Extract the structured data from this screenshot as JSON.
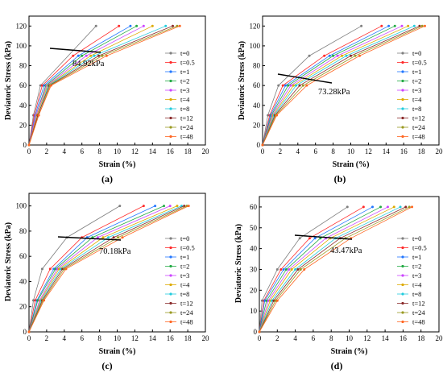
{
  "figure": {
    "shared_xlabel": "Strain (%)",
    "shared_ylabel": "Deviatoric Stress (kPa)"
  },
  "series_colors": [
    "#7f7f7f",
    "#ff2a2a",
    "#2277ff",
    "#22aa44",
    "#cc44ff",
    "#ddaa00",
    "#22ccdd",
    "#8a2a2a",
    "#9a9a22",
    "#ff6622"
  ],
  "chart_data": [
    {
      "panel": "(a)",
      "type": "line",
      "xlabel": "Strain (%)",
      "ylabel": "Deviatoric Stress (kPa)",
      "xlim": [
        0,
        20
      ],
      "ylim": [
        0,
        130
      ],
      "xticks": [
        0,
        2,
        4,
        6,
        8,
        10,
        12,
        14,
        16,
        18,
        20
      ],
      "yticks": [
        0,
        20,
        40,
        60,
        80,
        100,
        120
      ],
      "annotation": "84.92kPa",
      "legend_position": "right",
      "series": [
        {
          "name": "t=0",
          "x": [
            0,
            0.5,
            1.3,
            7.6
          ],
          "y": [
            0,
            30,
            60,
            120
          ]
        },
        {
          "name": "t=0.5",
          "x": [
            0,
            0.6,
            1.5,
            5.0,
            10.2
          ],
          "y": [
            0,
            30,
            60,
            90,
            120
          ]
        },
        {
          "name": "t=1",
          "x": [
            0,
            0.7,
            1.7,
            5.6,
            11.5
          ],
          "y": [
            0,
            30,
            60,
            90,
            120
          ]
        },
        {
          "name": "t=2",
          "x": [
            0,
            0.8,
            1.9,
            6.0,
            12.2
          ],
          "y": [
            0,
            30,
            60,
            90,
            120
          ]
        },
        {
          "name": "t=3",
          "x": [
            0,
            0.8,
            2.0,
            6.5,
            13.0
          ],
          "y": [
            0,
            30,
            60,
            90,
            120
          ]
        },
        {
          "name": "t=4",
          "x": [
            0,
            0.9,
            2.1,
            7.0,
            14.0
          ],
          "y": [
            0,
            30,
            60,
            90,
            120
          ]
        },
        {
          "name": "t=8",
          "x": [
            0,
            1.0,
            2.2,
            7.4,
            15.5
          ],
          "y": [
            0,
            30,
            60,
            90,
            120
          ]
        },
        {
          "name": "t=12",
          "x": [
            0,
            1.0,
            2.3,
            7.9,
            16.3
          ],
          "y": [
            0,
            30,
            60,
            90,
            120
          ]
        },
        {
          "name": "t=24",
          "x": [
            0,
            1.1,
            2.4,
            8.3,
            16.8
          ],
          "y": [
            0,
            30,
            60,
            90,
            120
          ]
        },
        {
          "name": "t=48",
          "x": [
            0,
            1.1,
            2.5,
            8.8,
            17.1
          ],
          "y": [
            0,
            30,
            60,
            90,
            120
          ]
        }
      ]
    },
    {
      "panel": "(b)",
      "type": "line",
      "xlabel": "Strain (%)",
      "ylabel": "Deviatoric Stress (kPa)",
      "xlim": [
        0,
        20
      ],
      "ylim": [
        0,
        130
      ],
      "xticks": [
        0,
        2,
        4,
        6,
        8,
        10,
        12,
        14,
        16,
        18,
        20
      ],
      "yticks": [
        0,
        20,
        40,
        60,
        80,
        100,
        120
      ],
      "annotation": "73.28kPa",
      "legend_position": "right",
      "series": [
        {
          "name": "t=0",
          "x": [
            0,
            0.6,
            1.8,
            5.3,
            11.2
          ],
          "y": [
            0,
            30,
            60,
            90,
            120
          ]
        },
        {
          "name": "t=0.5",
          "x": [
            0,
            0.8,
            2.3,
            7.0,
            13.5
          ],
          "y": [
            0,
            30,
            60,
            90,
            120
          ]
        },
        {
          "name": "t=1",
          "x": [
            0,
            0.9,
            2.6,
            7.6,
            14.3
          ],
          "y": [
            0,
            30,
            60,
            90,
            120
          ]
        },
        {
          "name": "t=2",
          "x": [
            0,
            1.0,
            2.9,
            8.0,
            15.0
          ],
          "y": [
            0,
            30,
            60,
            90,
            120
          ]
        },
        {
          "name": "t=3",
          "x": [
            0,
            1.1,
            3.2,
            8.5,
            15.8
          ],
          "y": [
            0,
            30,
            60,
            90,
            120
          ]
        },
        {
          "name": "t=4",
          "x": [
            0,
            1.2,
            3.5,
            9.0,
            16.5
          ],
          "y": [
            0,
            30,
            60,
            90,
            120
          ]
        },
        {
          "name": "t=8",
          "x": [
            0,
            1.3,
            3.8,
            9.5,
            17.2
          ],
          "y": [
            0,
            30,
            60,
            90,
            120
          ]
        },
        {
          "name": "t=12",
          "x": [
            0,
            1.4,
            4.2,
            10.0,
            17.8
          ],
          "y": [
            0,
            30,
            60,
            90,
            120
          ]
        },
        {
          "name": "t=24",
          "x": [
            0,
            1.5,
            4.6,
            10.5,
            18.1
          ],
          "y": [
            0,
            30,
            60,
            90,
            120
          ]
        },
        {
          "name": "t=48",
          "x": [
            0,
            1.6,
            5.0,
            11.0,
            18.4
          ],
          "y": [
            0,
            30,
            60,
            90,
            120
          ]
        }
      ]
    },
    {
      "panel": "(c)",
      "type": "line",
      "xlabel": "Strain (%)",
      "ylabel": "Deviatoric Stress (kPa)",
      "xlim": [
        0,
        20
      ],
      "ylim": [
        0,
        110
      ],
      "xticks": [
        0,
        2,
        4,
        6,
        8,
        10,
        12,
        14,
        16,
        18,
        20
      ],
      "yticks": [
        0,
        20,
        40,
        60,
        80,
        100
      ],
      "annotation": "70.18kPa",
      "legend_position": "right",
      "series": [
        {
          "name": "t=0",
          "x": [
            0,
            0.5,
            1.5,
            4.3,
            10.3
          ],
          "y": [
            0,
            25,
            50,
            75,
            100
          ]
        },
        {
          "name": "t=0.5",
          "x": [
            0,
            0.7,
            2.4,
            6.0,
            13.0
          ],
          "y": [
            0,
            25,
            50,
            75,
            100
          ]
        },
        {
          "name": "t=1",
          "x": [
            0,
            0.9,
            2.8,
            6.6,
            14.3
          ],
          "y": [
            0,
            25,
            50,
            75,
            100
          ]
        },
        {
          "name": "t=2",
          "x": [
            0,
            1.0,
            3.0,
            7.2,
            15.3
          ],
          "y": [
            0,
            25,
            50,
            75,
            100
          ]
        },
        {
          "name": "t=3",
          "x": [
            0,
            1.2,
            3.2,
            7.8,
            16.0
          ],
          "y": [
            0,
            25,
            50,
            75,
            100
          ]
        },
        {
          "name": "t=4",
          "x": [
            0,
            1.3,
            3.4,
            8.4,
            16.8
          ],
          "y": [
            0,
            25,
            50,
            75,
            100
          ]
        },
        {
          "name": "t=8",
          "x": [
            0,
            1.4,
            3.6,
            9.0,
            17.3
          ],
          "y": [
            0,
            25,
            50,
            75,
            100
          ]
        },
        {
          "name": "t=12",
          "x": [
            0,
            1.5,
            3.8,
            9.6,
            17.6
          ],
          "y": [
            0,
            25,
            50,
            75,
            100
          ]
        },
        {
          "name": "t=24",
          "x": [
            0,
            1.6,
            4.0,
            10.1,
            17.9
          ],
          "y": [
            0,
            25,
            50,
            75,
            100
          ]
        },
        {
          "name": "t=48",
          "x": [
            0,
            1.7,
            4.2,
            10.6,
            18.1
          ],
          "y": [
            0,
            25,
            50,
            75,
            100
          ]
        }
      ]
    },
    {
      "panel": "(d)",
      "type": "line",
      "xlabel": "Strain (%)",
      "ylabel": "Deviatoric Stress (kPa)",
      "xlim": [
        0,
        20
      ],
      "ylim": [
        0,
        65
      ],
      "xticks": [
        0,
        2,
        4,
        6,
        8,
        10,
        12,
        14,
        16,
        18,
        20
      ],
      "yticks": [
        0,
        10,
        20,
        30,
        40,
        50,
        60
      ],
      "annotation": "43.47kPa",
      "legend_position": "right",
      "series": [
        {
          "name": "t=0",
          "x": [
            0,
            0.3,
            2.0,
            4.5,
            9.8
          ],
          "y": [
            0,
            15,
            30,
            45,
            60
          ]
        },
        {
          "name": "t=0.5",
          "x": [
            0,
            0.5,
            2.4,
            5.6,
            11.6
          ],
          "y": [
            0,
            15,
            30,
            45,
            60
          ]
        },
        {
          "name": "t=1",
          "x": [
            0,
            0.6,
            2.7,
            6.2,
            12.6
          ],
          "y": [
            0,
            15,
            30,
            45,
            60
          ]
        },
        {
          "name": "t=2",
          "x": [
            0,
            0.8,
            3.0,
            6.8,
            13.5
          ],
          "y": [
            0,
            15,
            30,
            45,
            60
          ]
        },
        {
          "name": "t=3",
          "x": [
            0,
            1.0,
            3.3,
            7.4,
            14.3
          ],
          "y": [
            0,
            15,
            30,
            45,
            60
          ]
        },
        {
          "name": "t=4",
          "x": [
            0,
            1.2,
            3.6,
            7.9,
            15.0
          ],
          "y": [
            0,
            15,
            30,
            45,
            60
          ]
        },
        {
          "name": "t=8",
          "x": [
            0,
            1.4,
            4.0,
            8.5,
            15.7
          ],
          "y": [
            0,
            15,
            30,
            45,
            60
          ]
        },
        {
          "name": "t=12",
          "x": [
            0,
            1.6,
            4.3,
            9.0,
            16.3
          ],
          "y": [
            0,
            15,
            30,
            45,
            60
          ]
        },
        {
          "name": "t=24",
          "x": [
            0,
            1.8,
            4.6,
            9.6,
            16.7
          ],
          "y": [
            0,
            15,
            30,
            45,
            60
          ]
        },
        {
          "name": "t=48",
          "x": [
            0,
            2.0,
            5.0,
            10.2,
            17.0
          ],
          "y": [
            0,
            15,
            30,
            45,
            60
          ]
        }
      ]
    }
  ]
}
